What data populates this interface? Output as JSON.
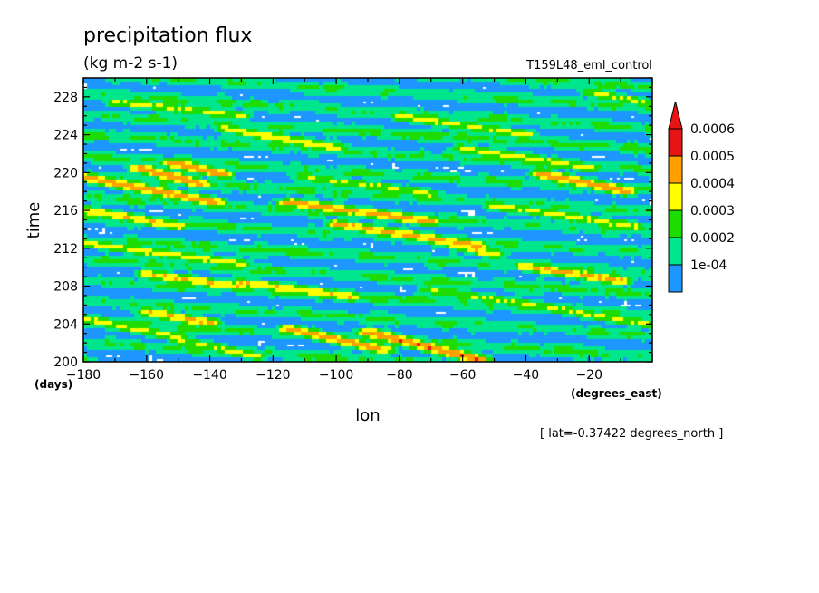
{
  "chart_data": {
    "type": "heatmap",
    "title": "precipitation flux",
    "units": "(kg m-2 s-1)",
    "experiment": "T159L48_eml_control",
    "xlabel": "lon",
    "ylabel": "time",
    "x_units": "(degrees_east)",
    "y_units": "(days)",
    "xlim": [
      -180,
      0
    ],
    "ylim": [
      200,
      230
    ],
    "x_ticks": [
      -180,
      -160,
      -140,
      -120,
      -100,
      -80,
      -60,
      -40,
      -20
    ],
    "y_ticks": [
      200,
      204,
      208,
      212,
      216,
      220,
      224,
      228
    ],
    "footnote": "[ lat=-0.37422 degrees_north ]",
    "colorbar": {
      "levels": [
        "1e-04",
        "0.0002",
        "0.0003",
        "0.0004",
        "0.0005",
        "0.0006"
      ],
      "colors": [
        "#1e96ff",
        "#00e68c",
        "#1edc00",
        "#ffff00",
        "#ffa000",
        "#e61414"
      ]
    },
    "bands": [
      {
        "x0": -180,
        "t0": 219.5,
        "x1": -138,
        "t1": 216.8,
        "peak": 4.6
      },
      {
        "x0": -162,
        "t0": 220.4,
        "x1": -143,
        "t1": 218.8,
        "peak": 4.8
      },
      {
        "x0": -152,
        "t0": 221.0,
        "x1": -136,
        "t1": 219.8,
        "peak": 4.6
      },
      {
        "x0": -180,
        "t0": 216.0,
        "x1": -150,
        "t1": 214.3,
        "peak": 3.9
      },
      {
        "x0": -115,
        "t0": 216.8,
        "x1": -70,
        "t1": 214.8,
        "peak": 4.4
      },
      {
        "x0": -100,
        "t0": 214.5,
        "x1": -55,
        "t1": 212.2,
        "peak": 4.3
      },
      {
        "x0": -75,
        "t0": 213.3,
        "x1": -50,
        "t1": 211.3,
        "peak": 3.8
      },
      {
        "x0": -35,
        "t0": 219.8,
        "x1": -8,
        "t1": 218.0,
        "peak": 4.6
      },
      {
        "x0": -40,
        "t0": 210.0,
        "x1": -10,
        "t1": 208.5,
        "peak": 4.3
      },
      {
        "x0": -160,
        "t0": 209.2,
        "x1": -130,
        "t1": 207.8,
        "peak": 4.0
      },
      {
        "x0": -130,
        "t0": 208.3,
        "x1": -95,
        "t1": 206.8,
        "peak": 3.9
      },
      {
        "x0": -160,
        "t0": 205.2,
        "x1": -140,
        "t1": 204.0,
        "peak": 4.1
      },
      {
        "x0": -115,
        "t0": 203.4,
        "x1": -85,
        "t1": 201.2,
        "peak": 4.4
      },
      {
        "x0": -90,
        "t0": 203.0,
        "x1": -55,
        "t1": 200.2,
        "peak": 4.9
      },
      {
        "x0": -135,
        "t0": 224.6,
        "x1": -100,
        "t1": 222.6,
        "peak": 3.6
      },
      {
        "x0": -80,
        "t0": 226.0,
        "x1": -40,
        "t1": 224.0,
        "peak": 3.3
      },
      {
        "x0": -60,
        "t0": 222.5,
        "x1": -20,
        "t1": 220.5,
        "peak": 3.4
      },
      {
        "x0": -170,
        "t0": 227.5,
        "x1": -130,
        "t1": 226.0,
        "peak": 3.2
      },
      {
        "x0": -110,
        "t0": 219.5,
        "x1": -70,
        "t1": 217.7,
        "peak": 3.2
      },
      {
        "x0": -50,
        "t0": 216.5,
        "x1": -5,
        "t1": 214.2,
        "peak": 3.3
      },
      {
        "x0": -180,
        "t0": 212.5,
        "x1": -130,
        "t1": 210.3,
        "peak": 3.4
      },
      {
        "x0": -30,
        "t0": 205.5,
        "x1": 0,
        "t1": 203.8,
        "peak": 3.2
      },
      {
        "x0": -70,
        "t0": 207.5,
        "x1": -30,
        "t1": 205.5,
        "peak": 3.1
      },
      {
        "x0": -180,
        "t0": 204.5,
        "x1": -150,
        "t1": 202.5,
        "peak": 3.3
      },
      {
        "x0": -20,
        "t0": 228.5,
        "x1": 0,
        "t1": 227.2,
        "peak": 3.1
      },
      {
        "x0": -150,
        "t0": 202.2,
        "x1": -125,
        "t1": 200.5,
        "peak": 3.2
      }
    ]
  }
}
